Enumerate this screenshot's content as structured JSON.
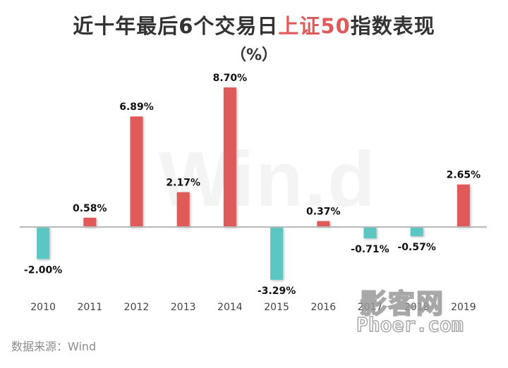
{
  "title": {
    "prefix": "近十年最后6个交易日",
    "highlight": "上证50",
    "suffix": "指数表现"
  },
  "unit_label": "（%）",
  "source": "数据来源：Wind",
  "watermarks": {
    "background": "Win.d",
    "logo_cn": "影客网",
    "logo_en": "Phoer.com"
  },
  "colors": {
    "positive": "#e05a5a",
    "negative": "#5cc6c2",
    "axis": "#b8b8b8"
  },
  "chart_data": {
    "type": "bar",
    "title": "近十年最后6个交易日上证50指数表现",
    "ylabel": "（%）",
    "categories": [
      "2010",
      "2011",
      "2012",
      "2013",
      "2014",
      "2015",
      "2016",
      "2017",
      "2018",
      "2019"
    ],
    "values": [
      -2.0,
      0.58,
      6.89,
      2.17,
      8.7,
      -3.29,
      0.37,
      -0.71,
      -0.57,
      2.65
    ],
    "data_labels": [
      "-2.00%",
      "0.58%",
      "6.89%",
      "2.17%",
      "8.70%",
      "-3.29%",
      "0.37%",
      "-0.71%",
      "-0.57%",
      "2.65%"
    ],
    "ylim": [
      -3.6,
      8.9
    ],
    "grid": false,
    "legend": "none"
  }
}
